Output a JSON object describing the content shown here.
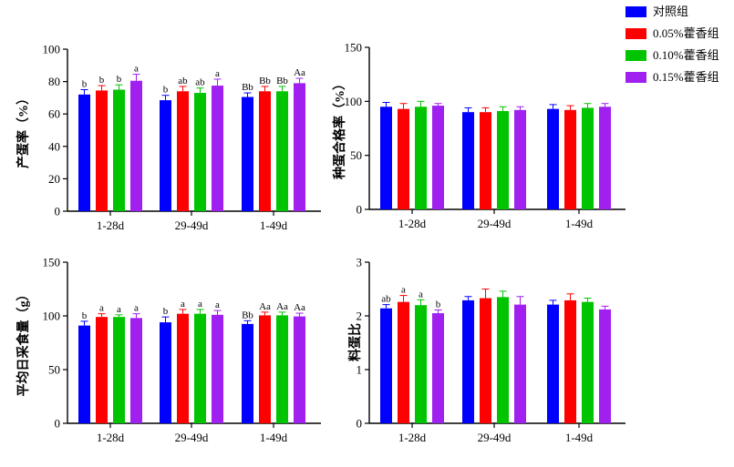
{
  "legend": {
    "entries": [
      {
        "label": "对照组",
        "color": "#0000ff"
      },
      {
        "label": "0.05%藿香组",
        "color": "#ff0000"
      },
      {
        "label": "0.10%藿香组",
        "color": "#00c400"
      },
      {
        "label": "0.15%藿香组",
        "color": "#a020f0"
      }
    ]
  },
  "chart_data": [
    {
      "type": "bar",
      "ylabel": "产蛋率（%）",
      "categories": [
        "1-28d",
        "29-49d",
        "1-49d"
      ],
      "ylim": [
        0,
        100
      ],
      "yticks": [
        0,
        20,
        40,
        60,
        80,
        100
      ],
      "series": [
        {
          "name": "对照组",
          "values": [
            72,
            68.5,
            70.5
          ],
          "errors": [
            3,
            3,
            2.5
          ],
          "labels": [
            "b",
            "b",
            "Bb"
          ]
        },
        {
          "name": "0.05%藿香组",
          "values": [
            74.5,
            74,
            74
          ],
          "errors": [
            3,
            3,
            3
          ],
          "labels": [
            "b",
            "ab",
            "Bb"
          ]
        },
        {
          "name": "0.10%藿香组",
          "values": [
            75,
            73,
            74
          ],
          "errors": [
            3,
            3,
            3
          ],
          "labels": [
            "b",
            "ab",
            "Bb"
          ]
        },
        {
          "name": "0.15%藿香组",
          "values": [
            80.5,
            77.5,
            79
          ],
          "errors": [
            4,
            4,
            3
          ],
          "labels": [
            "a",
            "a",
            "Aa"
          ]
        }
      ]
    },
    {
      "type": "bar",
      "ylabel": "种蛋合格率（%）",
      "categories": [
        "1-28d",
        "29-49d",
        "1-49d"
      ],
      "ylim": [
        0,
        150
      ],
      "yticks": [
        0,
        50,
        100,
        150
      ],
      "series": [
        {
          "name": "对照组",
          "values": [
            95,
            90,
            93
          ],
          "errors": [
            4,
            4,
            4
          ],
          "labels": [
            "",
            "",
            ""
          ]
        },
        {
          "name": "0.05%藿香组",
          "values": [
            93,
            90,
            92
          ],
          "errors": [
            5,
            4,
            4
          ],
          "labels": [
            "",
            "",
            ""
          ]
        },
        {
          "name": "0.10%藿香组",
          "values": [
            95,
            91,
            94
          ],
          "errors": [
            5,
            4,
            4
          ],
          "labels": [
            "",
            "",
            ""
          ]
        },
        {
          "name": "0.15%藿香组",
          "values": [
            96,
            92,
            95
          ],
          "errors": [
            2,
            3,
            3
          ],
          "labels": [
            "",
            "",
            ""
          ]
        }
      ]
    },
    {
      "type": "bar",
      "ylabel": "平均日采食量（g）",
      "categories": [
        "1-28d",
        "29-49d",
        "1-49d"
      ],
      "ylim": [
        0,
        150
      ],
      "yticks": [
        0,
        50,
        100,
        150
      ],
      "series": [
        {
          "name": "对照组",
          "values": [
            91,
            94,
            92.5
          ],
          "errors": [
            4,
            5,
            3
          ],
          "labels": [
            "b",
            "b",
            "Bb"
          ]
        },
        {
          "name": "0.05%藿香组",
          "values": [
            99,
            102,
            100.5
          ],
          "errors": [
            3,
            4,
            3
          ],
          "labels": [
            "a",
            "a",
            "Aa"
          ]
        },
        {
          "name": "0.10%藿香组",
          "values": [
            99,
            102,
            100.5
          ],
          "errors": [
            2,
            4,
            3
          ],
          "labels": [
            "a",
            "a",
            "Aa"
          ]
        },
        {
          "name": "0.15%藿香组",
          "values": [
            98,
            101,
            99.5
          ],
          "errors": [
            4,
            4,
            3
          ],
          "labels": [
            "a",
            "a",
            "Aa"
          ]
        }
      ]
    },
    {
      "type": "bar",
      "ylabel": "料蛋比",
      "categories": [
        "1-28d",
        "29-49d",
        "1-49d"
      ],
      "ylim": [
        0,
        3
      ],
      "yticks": [
        0,
        1,
        2,
        3
      ],
      "series": [
        {
          "name": "对照组",
          "values": [
            2.14,
            2.29,
            2.21
          ],
          "errors": [
            0.07,
            0.07,
            0.08
          ],
          "labels": [
            "ab",
            "",
            ""
          ]
        },
        {
          "name": "0.05%藿香组",
          "values": [
            2.26,
            2.33,
            2.29
          ],
          "errors": [
            0.12,
            0.17,
            0.12
          ],
          "labels": [
            "a",
            "",
            ""
          ]
        },
        {
          "name": "0.10%藿香组",
          "values": [
            2.2,
            2.35,
            2.26
          ],
          "errors": [
            0.1,
            0.11,
            0.07
          ],
          "labels": [
            "a",
            "",
            ""
          ]
        },
        {
          "name": "0.15%藿香组",
          "values": [
            2.05,
            2.21,
            2.12
          ],
          "errors": [
            0.06,
            0.15,
            0.06
          ],
          "labels": [
            "b",
            "",
            ""
          ]
        }
      ]
    }
  ]
}
